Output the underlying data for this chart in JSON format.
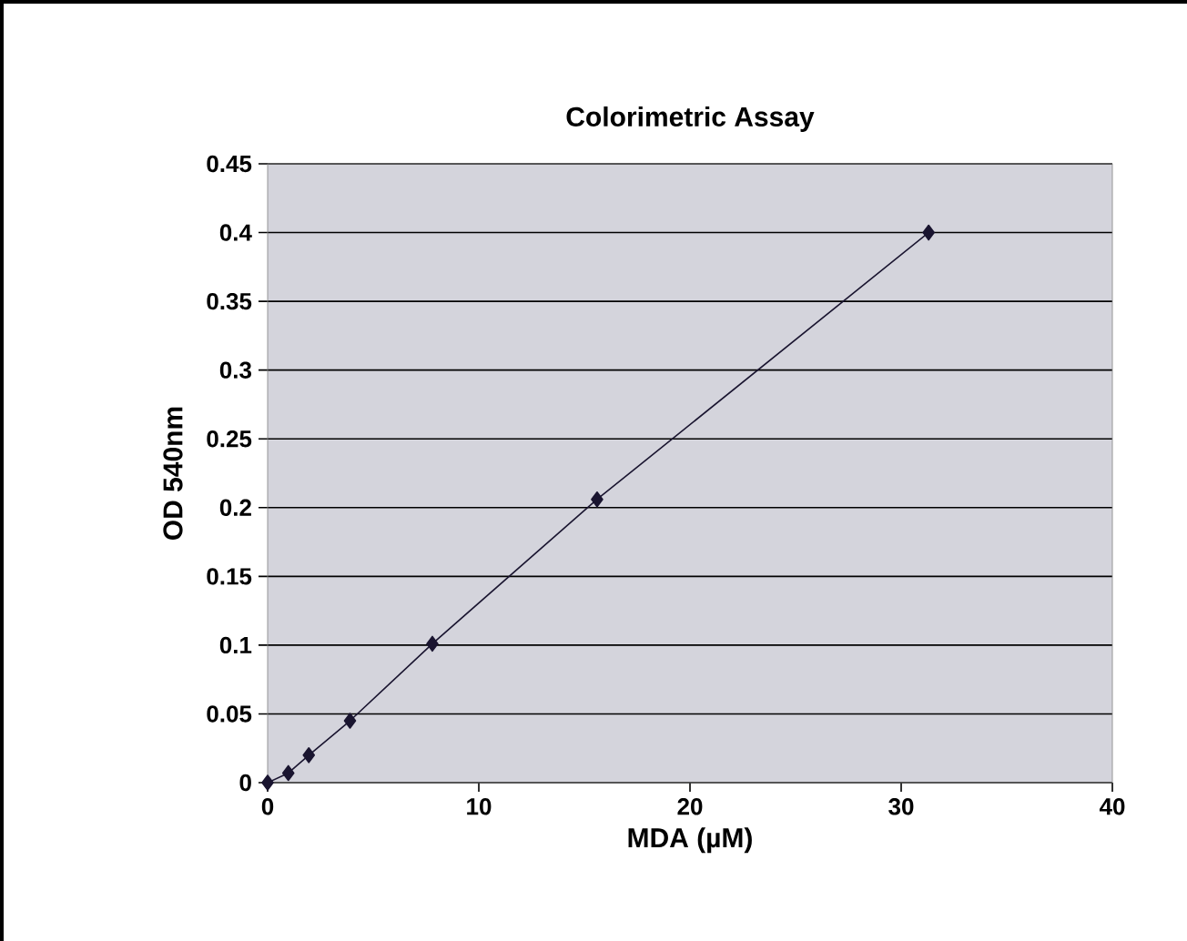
{
  "chart_data": {
    "type": "line",
    "title": "Colorimetric Assay",
    "xlabel": "MDA (µM)",
    "ylabel": "OD 540nm",
    "series": [
      {
        "color": "#1a1530",
        "marker": "diamond",
        "x": [
          0,
          0.98,
          1.95,
          3.9,
          7.8,
          15.6,
          31.3
        ],
        "values": [
          0,
          0.007,
          0.02,
          0.045,
          0.101,
          0.206,
          0.4
        ]
      }
    ],
    "xlim": [
      0,
      40
    ],
    "xticks": [
      0,
      10,
      20,
      30,
      40
    ],
    "ylim": [
      0,
      0.45
    ],
    "yticks": [
      0,
      0.05,
      0.1,
      0.15,
      0.2,
      0.25,
      0.3,
      0.35,
      0.4,
      0.45
    ],
    "grid": "y"
  }
}
